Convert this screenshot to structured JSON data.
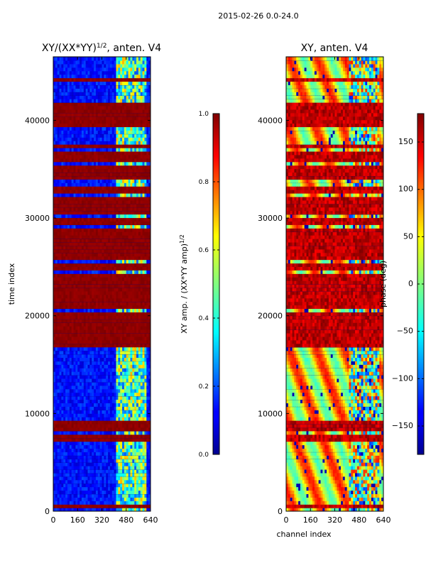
{
  "suptitle": "2015-02-26 0.0-24.0",
  "chart_data": [
    {
      "type": "heatmap",
      "title": "XY/(XX*YY)^(1/2), anten. V4",
      "title_main": "XY/(XX*YY)",
      "title_sup": "1/2",
      "title_tail": ", anten. V4",
      "xlabel": "",
      "ylabel": "time index",
      "xlim": [
        0,
        640
      ],
      "ylim": [
        0,
        46500
      ],
      "xticks": [
        0,
        160,
        320,
        480,
        640
      ],
      "yticks": [
        0,
        10000,
        20000,
        30000,
        40000
      ],
      "colorbar": {
        "label": "XY amp. / (XX*YY amp)^(1/2)",
        "label_main": "XY amp. / (XX*YY amp)",
        "label_sup": "1/2",
        "range": [
          0.0,
          1.0
        ],
        "ticks": [
          "0.0",
          "0.2",
          "0.4",
          "0.6",
          "0.8",
          "1.0"
        ],
        "tick_values": [
          0.0,
          0.2,
          0.4,
          0.6,
          0.8,
          1.0
        ]
      }
    },
    {
      "type": "heatmap",
      "title": "XY, anten. V4",
      "xlabel": "channel index",
      "ylabel": "",
      "xlim": [
        0,
        640
      ],
      "ylim": [
        0,
        46500
      ],
      "xticks": [
        0,
        160,
        320,
        480,
        640
      ],
      "yticks": [
        0,
        10000,
        20000,
        30000,
        40000
      ],
      "colorbar": {
        "label": "phase (deg)",
        "range": [
          -180,
          180
        ],
        "ticks": [
          "−150",
          "−100",
          "−50",
          "0",
          "50",
          "100",
          "150"
        ],
        "tick_values": [
          -150,
          -100,
          -50,
          0,
          50,
          100,
          150
        ]
      }
    }
  ]
}
